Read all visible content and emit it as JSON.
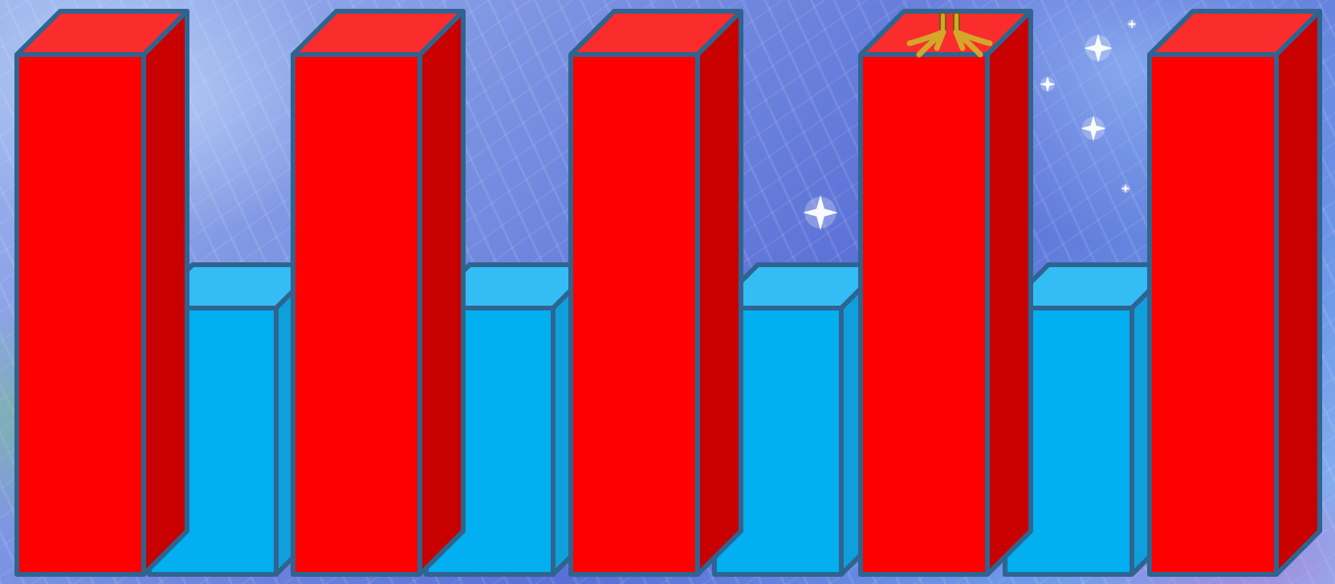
{
  "colors": {
    "red_front": "#ff0000",
    "red_top": "#fb2c2c",
    "red_side": "#c80000",
    "blue_front": "#02aff0",
    "blue_top": "#34bdf5",
    "blue_side": "#0fa0dc",
    "outline": "#2f6490",
    "bird_feet": "#d4a62a"
  },
  "pillars": [
    {
      "color": "red",
      "level": "tall"
    },
    {
      "color": "blue",
      "level": "short"
    },
    {
      "color": "red",
      "level": "tall"
    },
    {
      "color": "blue",
      "level": "short"
    },
    {
      "color": "red",
      "level": "tall"
    },
    {
      "color": "blue",
      "level": "short"
    },
    {
      "color": "red",
      "level": "tall",
      "character": "bird-feet"
    },
    {
      "color": "blue",
      "level": "short"
    },
    {
      "color": "red",
      "level": "tall"
    }
  ],
  "decorations": {
    "sparkles": "star-sparkle"
  }
}
